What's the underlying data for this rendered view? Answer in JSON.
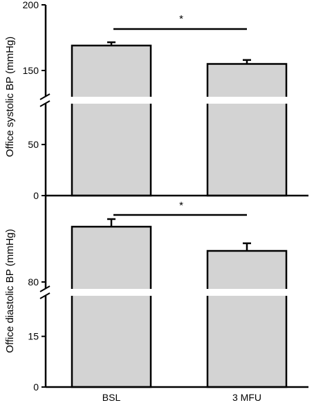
{
  "chart_data": [
    {
      "type": "bar",
      "panel": "top",
      "categories": [
        "BSL",
        "3 MFU"
      ],
      "values": [
        169,
        155
      ],
      "errors": [
        2.5,
        3
      ],
      "ylabel": "Office systolic BP (mmHg)",
      "axis_break": {
        "lower_range": [
          0,
          90
        ],
        "upper_range": [
          130,
          200
        ]
      },
      "yticks": [
        0,
        50,
        150,
        200
      ],
      "ytick_labels": [
        "0",
        "50",
        "150",
        "200"
      ],
      "significance": "*",
      "bar_color": "#d3d3d3"
    },
    {
      "type": "bar",
      "panel": "bottom",
      "categories": [
        "BSL",
        "3 MFU"
      ],
      "values": [
        96,
        89
      ],
      "errors": [
        2.2,
        2.2
      ],
      "ylabel": "Office diastolic BP (mmHg)",
      "axis_break": {
        "lower_range": [
          0,
          27
        ],
        "upper_range": [
          78,
          105
        ]
      },
      "yticks": [
        0,
        15,
        80
      ],
      "ytick_labels": [
        "0",
        "15",
        "80"
      ],
      "significance": "*",
      "bar_color": "#d3d3d3"
    }
  ]
}
